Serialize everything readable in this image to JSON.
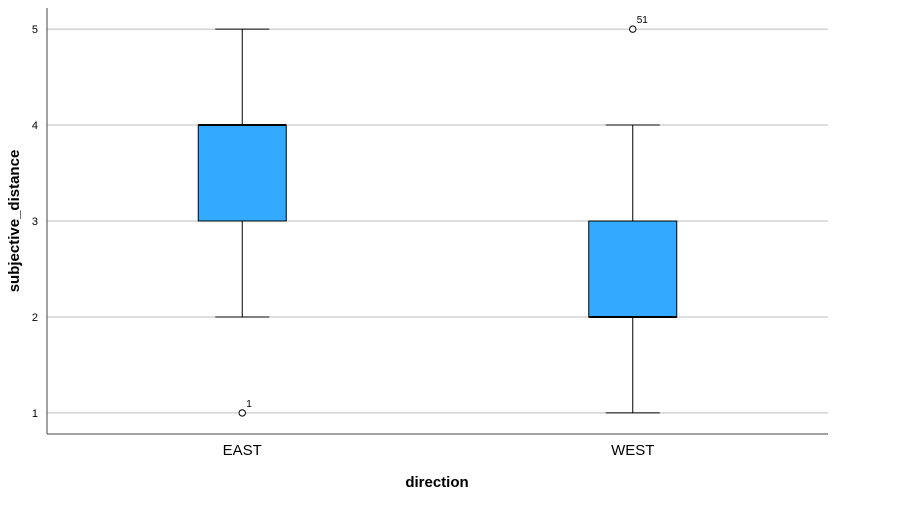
{
  "chart_data": {
    "type": "boxplot",
    "xlabel": "direction",
    "ylabel": "subjective_distance",
    "ylim": [
      0.78,
      5.22
    ],
    "yticks": [
      1,
      2,
      3,
      4,
      5
    ],
    "grid": "horizontal",
    "categories": [
      "EAST",
      "WEST"
    ],
    "boxes": [
      {
        "category": "EAST",
        "whisker_low": 2,
        "q1": 3,
        "median": 4,
        "q3": 4,
        "whisker_high": 5,
        "outliers": [
          {
            "value": 1,
            "label": "1"
          }
        ]
      },
      {
        "category": "WEST",
        "whisker_low": 1,
        "q1": 2,
        "median": 2,
        "q3": 3,
        "whisker_high": 4,
        "outliers": [
          {
            "value": 5,
            "label": "51"
          }
        ]
      }
    ],
    "box_color": "#33aaff",
    "grid_color": "#bdbdbd"
  }
}
